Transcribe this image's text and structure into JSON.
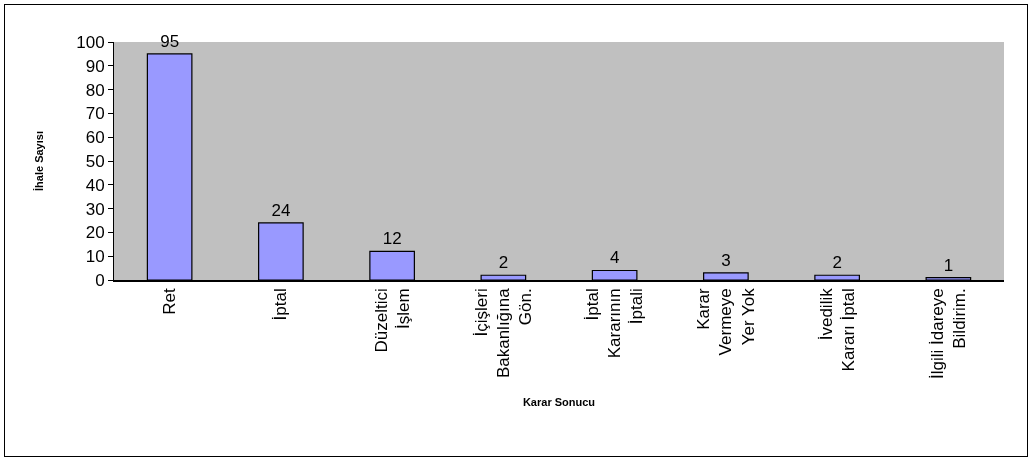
{
  "chart_data": {
    "type": "bar",
    "xlabel": "Karar Sonucu",
    "ylabel": "İhale Sayısı",
    "categories": [
      "Ret",
      "İptal",
      "Düzeltici\nİşlem",
      "İçişleri\nBakanlığına\nGön.",
      "İptal\nKararının\nİptali",
      "Karar\nVermeye\nYer Yok",
      "İvedilik\nKararı İptal",
      "İlgili İdareye\nBildirim."
    ],
    "values": [
      95,
      24,
      12,
      2,
      4,
      3,
      2,
      1
    ],
    "color": "#9999ff",
    "ylim": [
      0,
      100
    ],
    "yticks": [
      0,
      10,
      20,
      30,
      40,
      50,
      60,
      70,
      80,
      90,
      100
    ],
    "grid": false,
    "legend": false,
    "data_labels": true
  }
}
